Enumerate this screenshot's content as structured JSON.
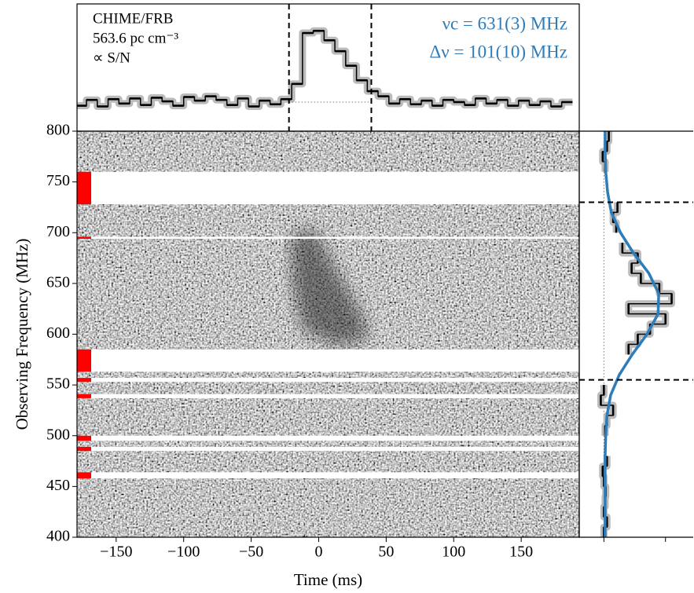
{
  "chart_data": [
    {
      "type": "step",
      "labels": [
        "CHIME/FRB",
        "563.6 pc cm⁻³",
        "∝ S/N"
      ],
      "annotations": [
        "νc = 631(3) MHz",
        "Δν = 101(10) MHz"
      ],
      "annotation_color": "#2e7cb8",
      "color": "#000000",
      "x": [
        -176,
        -168,
        -160,
        -152,
        -144,
        -136,
        -128,
        -120,
        -112,
        -104,
        -96,
        -88,
        -80,
        -72,
        -64,
        -56,
        -48,
        -40,
        -32,
        -24,
        -16,
        -8,
        0,
        8,
        16,
        24,
        32,
        40,
        48,
        56,
        64,
        72,
        80,
        88,
        96,
        104,
        112,
        120,
        128,
        136,
        144,
        152,
        160,
        168,
        176,
        184
      ],
      "values": [
        -0.05,
        0.03,
        -0.06,
        0.04,
        -0.02,
        0.05,
        -0.04,
        0.06,
        0.01,
        -0.05,
        0.07,
        0.02,
        0.08,
        0.03,
        -0.04,
        0.05,
        -0.06,
        0.02,
        -0.03,
        0.04,
        0.25,
        0.95,
        0.98,
        0.85,
        0.7,
        0.5,
        0.3,
        0.15,
        0.08,
        -0.02,
        0.04,
        -0.03,
        0.02,
        -0.05,
        0.03,
        0,
        -0.04,
        0.05,
        -0.02,
        0.03,
        -0.05,
        0.02,
        -0.04,
        0.01,
        -0.06,
        0
      ],
      "window": [
        -22,
        39
      ],
      "baseline": 0,
      "xlim": [
        -179,
        193
      ],
      "ylim": [
        -0.4,
        1.35
      ]
    },
    {
      "type": "heatmap",
      "xlabel": "Time (ms)",
      "ylabel": "Observing Frequency (MHz)",
      "xlim": [
        -179,
        193
      ],
      "ylim": [
        400,
        800
      ],
      "xticks": [
        {
          "value": -150,
          "label": "−150"
        },
        {
          "value": -100,
          "label": "−100"
        },
        {
          "value": -50,
          "label": "−50"
        },
        0,
        50,
        100,
        150
      ],
      "yticks": [
        400,
        450,
        500,
        550,
        600,
        650,
        700,
        750,
        800
      ],
      "masked_bands": [
        [
          728,
          760
        ],
        [
          563,
          585
        ],
        [
          694,
          696
        ],
        [
          553,
          557
        ],
        [
          537,
          541
        ],
        [
          495,
          500
        ],
        [
          485,
          489
        ],
        [
          458,
          464
        ]
      ],
      "mask_color": "#ff0000"
    },
    {
      "type": "spectrum",
      "color": "#000000",
      "y": [
        795,
        785,
        775,
        765,
        755,
        745,
        735,
        725,
        715,
        705,
        695,
        685,
        675,
        665,
        655,
        645,
        635,
        625,
        615,
        605,
        595,
        585,
        575,
        565,
        555,
        545,
        535,
        525,
        515,
        505,
        495,
        485,
        475,
        465,
        455,
        445,
        435,
        425,
        415,
        405
      ],
      "values": [
        0.08,
        0.05,
        -0.02,
        0.02,
        null,
        null,
        null,
        0.22,
        0.15,
        0.2,
        null,
        0.3,
        0.55,
        0.45,
        0.6,
        0.9,
        1.1,
        0.4,
        1.0,
        0.75,
        0.55,
        0.4,
        null,
        null,
        null,
        0,
        -0.05,
        0.15,
        0.05,
        0.02,
        null,
        null,
        0.05,
        -0.02,
        0,
        0.03,
        0.02,
        0,
        0.05,
        0
      ],
      "fit": {
        "color": "#2e7cb8",
        "y": [
          400,
          420,
          440,
          460,
          480,
          500,
          520,
          540,
          560,
          580,
          600,
          620,
          640,
          660,
          680,
          700,
          720,
          740,
          760,
          780,
          800
        ],
        "values": [
          0.02,
          0.02,
          0.02,
          0.02,
          0.02,
          0.03,
          0.05,
          0.11,
          0.25,
          0.46,
          0.7,
          0.88,
          0.89,
          0.73,
          0.48,
          0.27,
          0.12,
          0.06,
          0.03,
          0.02,
          0.02
        ]
      },
      "band_edges": [
        730,
        555
      ],
      "xlim": [
        -0.4,
        1.45
      ],
      "xticks": [
        0,
        1
      ],
      "ylim": [
        400,
        800
      ]
    }
  ]
}
